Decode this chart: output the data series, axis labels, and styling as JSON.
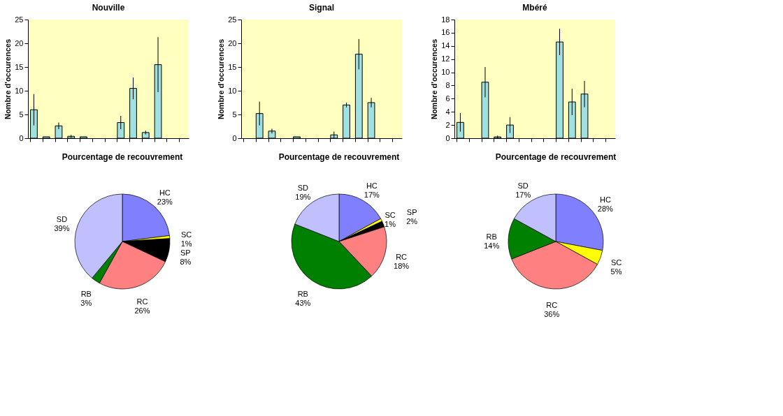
{
  "chart_data": [
    {
      "type": "bar",
      "title": "Nouville",
      "ylabel": "Nombre d'occurences",
      "categories": [
        null,
        null,
        null,
        null,
        null,
        null,
        null,
        null,
        null,
        null,
        null,
        null,
        null
      ],
      "values": [
        6.0,
        0.3,
        2.6,
        0.4,
        0.3,
        null,
        null,
        3.3,
        10.5,
        1.2,
        15.5,
        null,
        null
      ],
      "errors": [
        3.3,
        null,
        0.7,
        0.3,
        null,
        null,
        null,
        1.4,
        2.3,
        0.4,
        5.8,
        null,
        null
      ],
      "color": "#a0e0e0",
      "ylim": [
        0,
        25
      ],
      "yticks": [
        0,
        5,
        10,
        15,
        20,
        25
      ],
      "tick_labels": "y"
    },
    {
      "type": "bar",
      "title": "Signal",
      "ylabel": "Nombre d'occurences",
      "categories": [
        null,
        null,
        null,
        null,
        null,
        null,
        null,
        null,
        null,
        null,
        null,
        null,
        null
      ],
      "values": [
        null,
        5.2,
        1.5,
        null,
        0.3,
        null,
        null,
        0.7,
        7.0,
        17.7,
        7.5,
        null,
        null
      ],
      "errors": [
        null,
        2.5,
        0.5,
        null,
        null,
        null,
        null,
        0.7,
        0.5,
        3.2,
        1.0,
        null,
        null
      ],
      "color": "#a0e0e0",
      "ylim": [
        0,
        25
      ],
      "yticks": [
        0,
        5,
        10,
        15,
        20,
        25
      ],
      "tick_labels": "y"
    },
    {
      "type": "bar",
      "title": "Mbéré",
      "ylabel": "Nombre d'occurences",
      "categories": [
        null,
        null,
        null,
        null,
        null,
        null,
        null,
        null,
        null,
        null,
        null,
        null,
        null
      ],
      "values": [
        2.4,
        null,
        8.5,
        0.2,
        2.0,
        null,
        null,
        null,
        14.6,
        5.5,
        6.7,
        null,
        null
      ],
      "errors": [
        1.4,
        null,
        2.3,
        0.2,
        1.2,
        null,
        null,
        null,
        2.0,
        2.0,
        2.0,
        null,
        null
      ],
      "color": "#a0e0e0",
      "ylim": [
        0,
        18
      ],
      "yticks": [
        0,
        2,
        4,
        6,
        8,
        10,
        12,
        14,
        16,
        18
      ],
      "tick_labels": "y"
    },
    {
      "type": "pie",
      "title": "Pourcentage de recouvrement",
      "categories": [
        "HC",
        "SC",
        "SP",
        "RC",
        "RB",
        "SD"
      ],
      "values": [
        23,
        1,
        8,
        26,
        3,
        39
      ],
      "value_labels": [
        "23%",
        "1%",
        "8%",
        "26%",
        "3%",
        "39%"
      ],
      "colors": [
        "#8080ff",
        "#ffff00",
        "#000000",
        "#ff8080",
        "#008000",
        "#c0c0ff"
      ]
    },
    {
      "type": "pie",
      "title": "Pourcentage de recouvrement",
      "categories": [
        "HC",
        "SC",
        "SP",
        "RC",
        "RB",
        "SD"
      ],
      "values": [
        17,
        1,
        2,
        18,
        43,
        19
      ],
      "value_labels": [
        "17%",
        "1%",
        "2%",
        "18%",
        "43%",
        "19%"
      ],
      "colors": [
        "#8080ff",
        "#ffff00",
        "#000000",
        "#ff8080",
        "#008000",
        "#c0c0ff"
      ]
    },
    {
      "type": "pie",
      "title": "Pourcentage de recouvrement",
      "categories": [
        "HC",
        "SC",
        "RC",
        "RB",
        "SD"
      ],
      "values": [
        28,
        5,
        36,
        14,
        17
      ],
      "value_labels": [
        "28%",
        "5%",
        "36%",
        "14%",
        "17%"
      ],
      "colors": [
        "#8080ff",
        "#ffff00",
        "#ff8080",
        "#008000",
        "#c0c0ff"
      ]
    }
  ]
}
